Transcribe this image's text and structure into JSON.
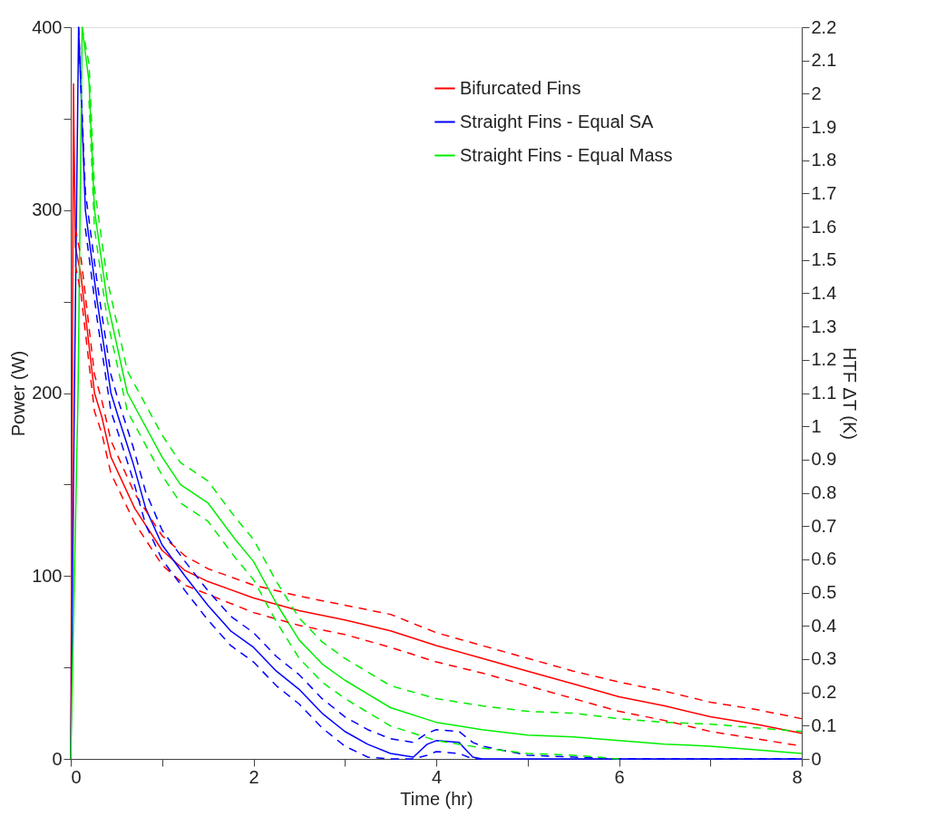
{
  "chart_data": {
    "type": "line",
    "xlabel": "Time (hr)",
    "ylabel": "Power (W)",
    "y2label": "HTF ΔT (K)",
    "xlim": [
      0,
      8
    ],
    "xticks": [
      0,
      {
        "value": 1,
        "label": null
      },
      2,
      {
        "value": 3,
        "label": null
      },
      4,
      {
        "value": 5,
        "label": null
      },
      6,
      {
        "value": 7,
        "label": null
      },
      8
    ],
    "ylim": [
      0,
      400
    ],
    "yticks": [
      0,
      {
        "value": 50,
        "label": null
      },
      100,
      {
        "value": 150,
        "label": null
      },
      200,
      {
        "value": 250,
        "label": null
      },
      300,
      {
        "value": 350,
        "label": null
      },
      400
    ],
    "y2lim": [
      0,
      2.2
    ],
    "y2ticks": [
      0,
      0.1,
      0.2,
      0.3,
      0.4,
      0.5,
      0.6,
      0.7,
      0.8,
      0.9,
      1,
      1.1,
      1.2,
      1.3,
      1.4,
      1.5,
      1.6,
      1.7,
      1.8,
      1.9,
      2,
      2.1,
      2.2
    ],
    "grid": false,
    "legend": "top right",
    "line_style": "solid",
    "marker": "none",
    "series": [
      {
        "name": "Bifurcated Fins",
        "color": "#ff0000",
        "x": [
          0,
          0.03,
          0.05,
          0.11,
          0.26,
          0.34,
          0.44,
          0.7,
          1.0,
          1.25,
          1.5,
          2,
          2.5,
          3,
          3.5,
          4,
          4.5,
          5,
          5.5,
          6,
          6.5,
          7,
          7.5,
          8
        ],
        "values": [
          0,
          369,
          280,
          265,
          200,
          187,
          165,
          137,
          114,
          103,
          97,
          88,
          81,
          76,
          70,
          62,
          55,
          48,
          41,
          34,
          29,
          23,
          19,
          14
        ]
      },
      {
        "name": "Straight Fins - Equal SA",
        "color": "#0000ff",
        "x": [
          0,
          0.04,
          0.086,
          0.16,
          0.29,
          0.44,
          0.52,
          0.68,
          0.82,
          1.0,
          1.25,
          1.5,
          1.75,
          2,
          2.25,
          2.5,
          2.75,
          3,
          3.25,
          3.5,
          3.75,
          3.9,
          4.0,
          4.25,
          4.4,
          4.5,
          5,
          6,
          7,
          8
        ],
        "values": [
          0,
          200,
          400,
          300,
          250,
          200,
          187,
          162,
          137,
          117,
          100,
          84,
          70,
          61,
          48,
          38,
          25,
          15,
          8,
          3,
          1,
          8,
          10,
          9,
          1,
          0,
          0,
          0,
          0,
          0
        ]
      },
      {
        "name": "Straight Fins - Equal Mass",
        "color": "#00ee00",
        "x": [
          0,
          0.08,
          0.125,
          0.2,
          0.26,
          0.4,
          0.62,
          1.0,
          1.2,
          1.5,
          1.8,
          2.0,
          2.25,
          2.5,
          2.75,
          3,
          3.5,
          4,
          4.5,
          5,
          5.5,
          6,
          6.5,
          7,
          7.5,
          8
        ],
        "values": [
          0,
          200,
          400,
          370,
          300,
          250,
          200,
          165,
          150,
          140,
          120,
          108,
          85,
          65,
          52,
          43,
          28,
          20,
          16,
          13,
          12,
          10,
          8,
          7,
          5,
          3
        ]
      },
      {
        "color": "#ff0000",
        "line_style": "dashed",
        "x": [
          0.05,
          0.11,
          0.26,
          0.34,
          0.44,
          0.7,
          1.0,
          1.25,
          1.5,
          2,
          2.5,
          3,
          3.5,
          4,
          4.5,
          5,
          5.5,
          6,
          6.5,
          7,
          7.5,
          8
        ],
        "values": [
          290,
          275,
          210,
          196,
          174,
          145,
          122,
          111,
          104,
          95,
          89,
          84,
          79,
          69,
          62,
          55,
          48,
          42,
          37,
          31,
          27,
          22
        ]
      },
      {
        "color": "#ff0000",
        "line_style": "dashed",
        "x": [
          0.05,
          0.11,
          0.26,
          0.34,
          0.44,
          0.7,
          1.0,
          1.25,
          1.5,
          2,
          2.5,
          3,
          3.5,
          4,
          4.5,
          5,
          5.5,
          6,
          6.5,
          7,
          7.5,
          8
        ],
        "values": [
          270,
          255,
          190,
          178,
          156,
          129,
          106,
          95,
          90,
          80,
          73,
          68,
          61,
          53,
          47,
          40,
          33,
          26,
          21,
          15,
          11,
          7
        ]
      },
      {
        "color": "#0000ff",
        "line_style": "dashed",
        "x": [
          0.086,
          0.16,
          0.29,
          0.44,
          0.52,
          0.68,
          0.82,
          1.0,
          1.25,
          1.5,
          1.75,
          2,
          2.25,
          2.5,
          2.75,
          3,
          3.25,
          3.5,
          3.75,
          3.9,
          4.0,
          4.25,
          4.4,
          4.5,
          5,
          6,
          7,
          8
        ],
        "values": [
          400,
          310,
          260,
          210,
          196,
          171,
          146,
          125,
          108,
          92,
          78,
          69,
          56,
          46,
          33,
          23,
          16,
          11,
          9,
          14,
          16,
          15,
          9,
          7,
          2,
          0,
          0,
          0
        ]
      },
      {
        "color": "#0000ff",
        "line_style": "dashed",
        "x": [
          0.16,
          0.29,
          0.44,
          0.52,
          0.68,
          0.82,
          1.0,
          1.25,
          1.5,
          1.75,
          2,
          2.25,
          2.5,
          2.75,
          3,
          3.25,
          3.5,
          3.75,
          3.9,
          4.0,
          4.25,
          4.4,
          4.5
        ],
        "values": [
          290,
          240,
          190,
          178,
          153,
          128,
          109,
          92,
          76,
          62,
          53,
          40,
          30,
          17,
          7,
          1,
          0,
          0,
          2,
          4,
          3,
          0,
          0
        ]
      },
      {
        "color": "#00ee00",
        "line_style": "dashed",
        "x": [
          0.125,
          0.2,
          0.26,
          0.4,
          0.62,
          1.0,
          1.2,
          1.5,
          1.8,
          2.0,
          2.25,
          2.5,
          2.75,
          3,
          3.5,
          4,
          4.5,
          5,
          5.5,
          6,
          6.5,
          7,
          7.5,
          8
        ],
        "values": [
          400,
          380,
          312,
          262,
          212,
          177,
          162,
          152,
          132,
          120,
          97,
          77,
          64,
          55,
          40,
          33,
          29,
          26,
          25,
          22,
          20,
          19,
          17,
          15
        ]
      },
      {
        "color": "#00ee00",
        "line_style": "dashed",
        "x": [
          0.2,
          0.26,
          0.4,
          0.62,
          1.0,
          1.2,
          1.5,
          1.8,
          2.0,
          2.25,
          2.5,
          2.75,
          3,
          3.5,
          4,
          4.5,
          5,
          5.5,
          6
        ],
        "values": [
          360,
          290,
          240,
          190,
          155,
          140,
          130,
          110,
          98,
          75,
          55,
          42,
          33,
          18,
          10,
          6,
          3,
          2,
          0
        ]
      }
    ]
  }
}
